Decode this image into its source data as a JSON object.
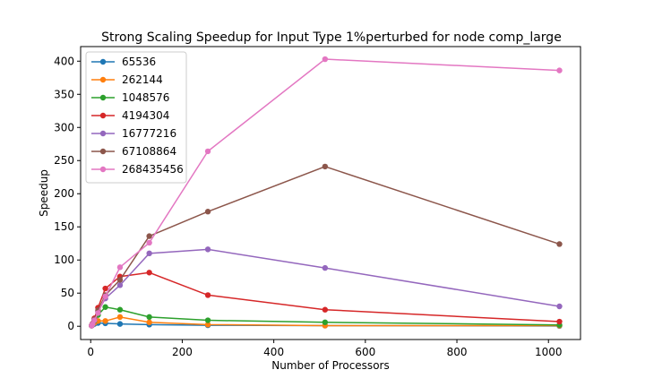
{
  "chart_data": {
    "type": "line",
    "title": "Strong Scaling Speedup for Input Type 1%perturbed for node comp_large",
    "xlabel": "Number of Processors",
    "ylabel": "Speedup",
    "xlim": [
      -22,
      1070
    ],
    "ylim": [
      -20,
      422
    ],
    "xticks": [
      0,
      200,
      400,
      600,
      800,
      1000
    ],
    "yticks": [
      0,
      50,
      100,
      150,
      200,
      250,
      300,
      350,
      400
    ],
    "grid": false,
    "legend_position": "top-left",
    "x": [
      2,
      4,
      8,
      16,
      32,
      64,
      128,
      256,
      512,
      1024
    ],
    "series": [
      {
        "name": "65536",
        "color": "#1f77b4",
        "values": [
          1,
          2,
          3.5,
          5,
          4.5,
          3.5,
          2.5,
          1.5,
          1,
          0.5
        ]
      },
      {
        "name": "262144",
        "color": "#ff7f0e",
        "values": [
          1,
          2.5,
          5,
          8,
          8,
          14,
          6,
          2.5,
          1,
          1
        ]
      },
      {
        "name": "1048576",
        "color": "#2ca02c",
        "values": [
          1,
          3,
          8,
          17,
          29,
          25,
          14,
          9,
          6,
          2
        ]
      },
      {
        "name": "4194304",
        "color": "#d62728",
        "values": [
          1,
          4,
          12,
          28,
          57,
          75,
          81,
          47,
          25,
          7
        ]
      },
      {
        "name": "16777216",
        "color": "#9467bd",
        "values": [
          1,
          3.5,
          10,
          22,
          42,
          62,
          110,
          116,
          88,
          30
        ]
      },
      {
        "name": "67108864",
        "color": "#8c564b",
        "values": [
          1,
          3.5,
          10,
          24,
          47,
          70,
          136,
          173,
          241,
          124
        ]
      },
      {
        "name": "268435456",
        "color": "#e377c2",
        "values": [
          1,
          3,
          9,
          20,
          45,
          89,
          126,
          264,
          403,
          386
        ]
      }
    ]
  }
}
